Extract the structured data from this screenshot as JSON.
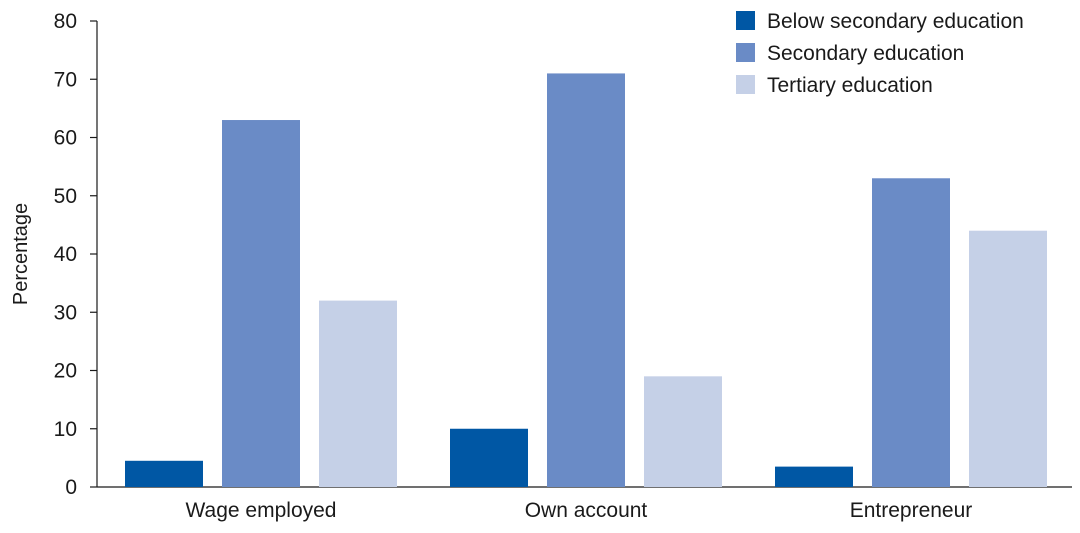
{
  "chart_data": {
    "type": "bar",
    "title": "",
    "xlabel": "",
    "ylabel": "Percentage",
    "ylim": [
      0,
      80
    ],
    "yticks": [
      0,
      10,
      20,
      30,
      40,
      50,
      60,
      70,
      80
    ],
    "categories": [
      "Wage employed",
      "Own account",
      "Entrepreneur"
    ],
    "series": [
      {
        "name": "Below secondary education",
        "color": "#0057a4",
        "values": [
          4.5,
          10,
          3.5
        ]
      },
      {
        "name": "Secondary education",
        "color": "#6a8bc6",
        "values": [
          63,
          71,
          53
        ]
      },
      {
        "name": "Tertiary education",
        "color": "#c5d0e7",
        "values": [
          32,
          19,
          44
        ]
      }
    ],
    "legend": {
      "position": "top-right"
    },
    "grid": false
  }
}
